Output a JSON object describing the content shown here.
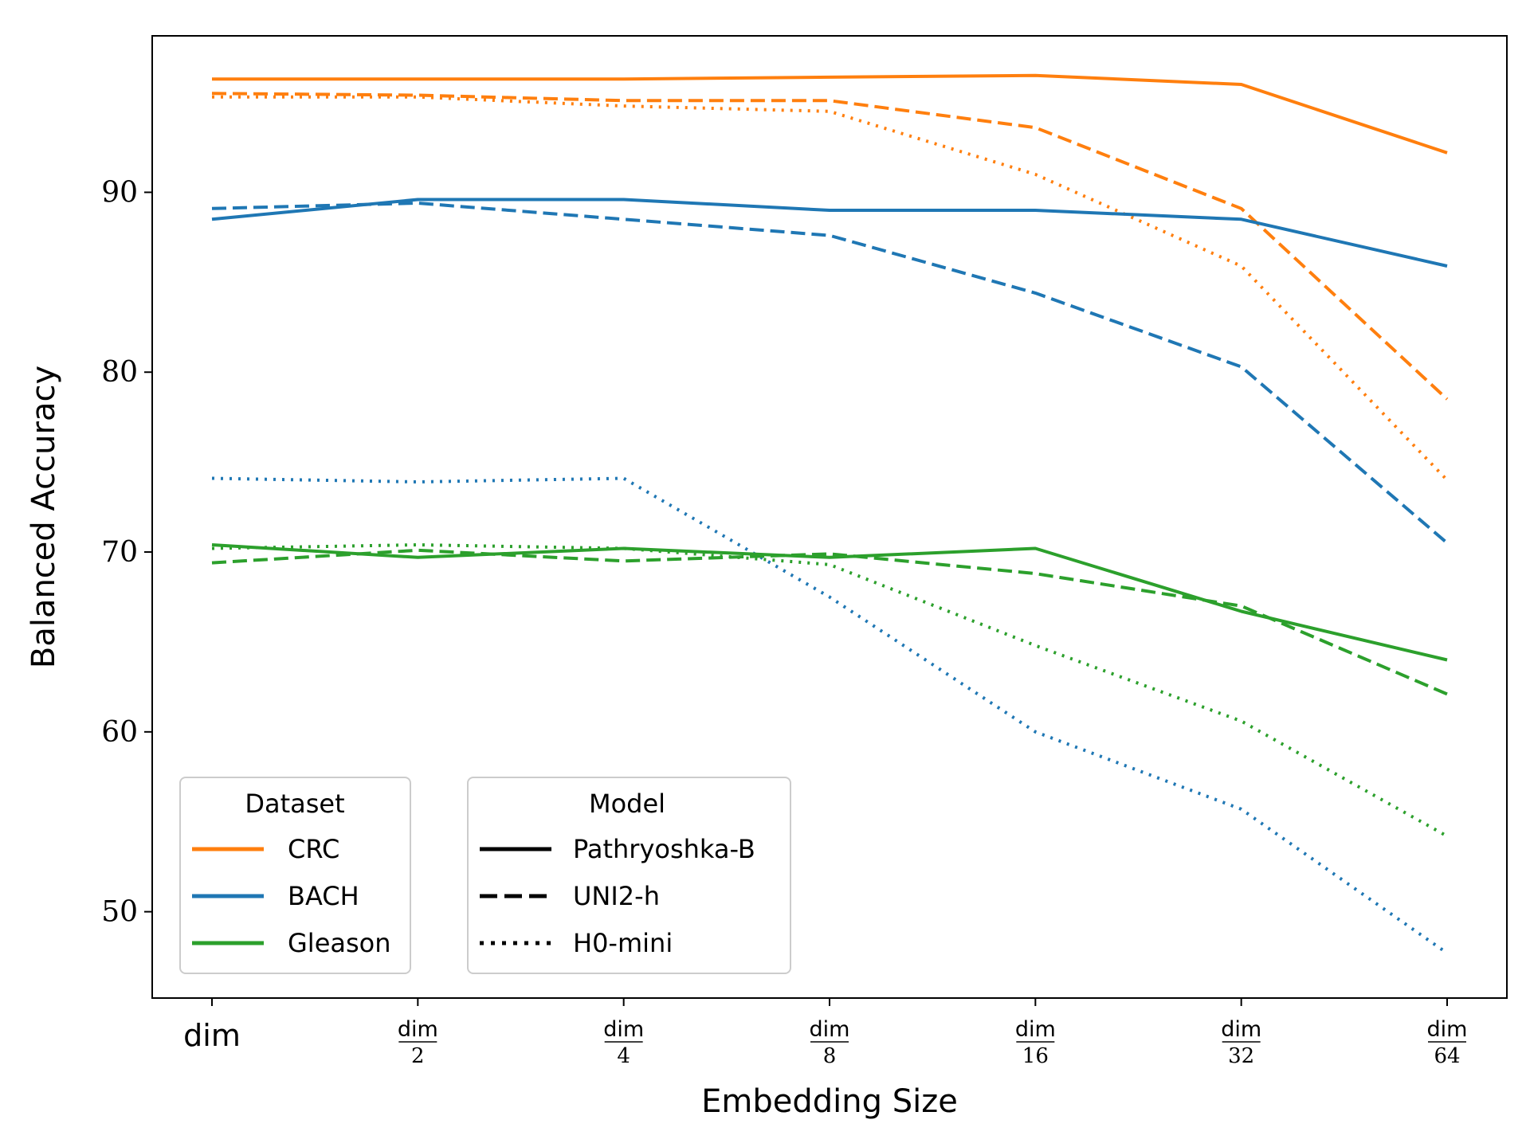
{
  "chart_data": {
    "type": "line",
    "xlabel": "Embedding Size",
    "ylabel": "Balanced Accuracy",
    "ylim": [
      45.2,
      98.7
    ],
    "y_ticks": [
      50,
      60,
      70,
      80,
      90
    ],
    "x_ticks": [
      {
        "num": "dim",
        "den": ""
      },
      {
        "num": "dim",
        "den": "2"
      },
      {
        "num": "dim",
        "den": "4"
      },
      {
        "num": "dim",
        "den": "8"
      },
      {
        "num": "dim",
        "den": "16"
      },
      {
        "num": "dim",
        "den": "32"
      },
      {
        "num": "dim",
        "den": "64"
      }
    ],
    "series": [
      {
        "name": "CRC / Pathryoshka-B",
        "dataset": "CRC",
        "model": "Pathryoshka-B",
        "values": [
          96.3,
          96.3,
          96.3,
          96.4,
          96.5,
          96.0,
          92.2
        ]
      },
      {
        "name": "CRC / UNI2-h",
        "dataset": "CRC",
        "model": "UNI2-h",
        "values": [
          95.5,
          95.4,
          95.1,
          95.1,
          93.6,
          89.1,
          78.5
        ]
      },
      {
        "name": "CRC / H0-mini",
        "dataset": "CRC",
        "model": "H0-mini",
        "values": [
          95.3,
          95.3,
          94.8,
          94.5,
          91.0,
          85.9,
          74.0
        ]
      },
      {
        "name": "BACH / Pathryoshka-B",
        "dataset": "BACH",
        "model": "Pathryoshka-B",
        "values": [
          88.5,
          89.6,
          89.6,
          89.0,
          89.0,
          88.5,
          85.9
        ]
      },
      {
        "name": "BACH / UNI2-h",
        "dataset": "BACH",
        "model": "UNI2-h",
        "values": [
          89.1,
          89.4,
          88.5,
          87.6,
          84.4,
          80.3,
          70.5
        ]
      },
      {
        "name": "BACH / H0-mini",
        "dataset": "BACH",
        "model": "H0-mini",
        "values": [
          74.1,
          73.9,
          74.1,
          67.5,
          60.0,
          55.7,
          47.7
        ]
      },
      {
        "name": "Gleason / Pathryoshka-B",
        "dataset": "Gleason",
        "model": "Pathryoshka-B",
        "values": [
          70.4,
          69.7,
          70.2,
          69.7,
          70.2,
          66.7,
          64.0
        ]
      },
      {
        "name": "Gleason / UNI2-h",
        "dataset": "Gleason",
        "model": "UNI2-h",
        "values": [
          69.4,
          70.1,
          69.5,
          69.9,
          68.8,
          67.0,
          62.1
        ]
      },
      {
        "name": "Gleason / H0-mini",
        "dataset": "Gleason",
        "model": "H0-mini",
        "values": [
          70.2,
          70.4,
          70.2,
          69.3,
          64.8,
          60.6,
          54.2
        ]
      }
    ],
    "colors": {
      "CRC": "#ff7f0e",
      "BACH": "#1f77b4",
      "Gleason": "#2ca02c"
    },
    "legend_dataset": {
      "title": "Dataset",
      "entries": [
        "CRC",
        "BACH",
        "Gleason"
      ],
      "position": "lower-left"
    },
    "legend_model": {
      "title": "Model",
      "entries": [
        "Pathryoshka-B",
        "UNI2-h",
        "H0-mini"
      ],
      "position": "lower-left"
    },
    "grid": false
  }
}
